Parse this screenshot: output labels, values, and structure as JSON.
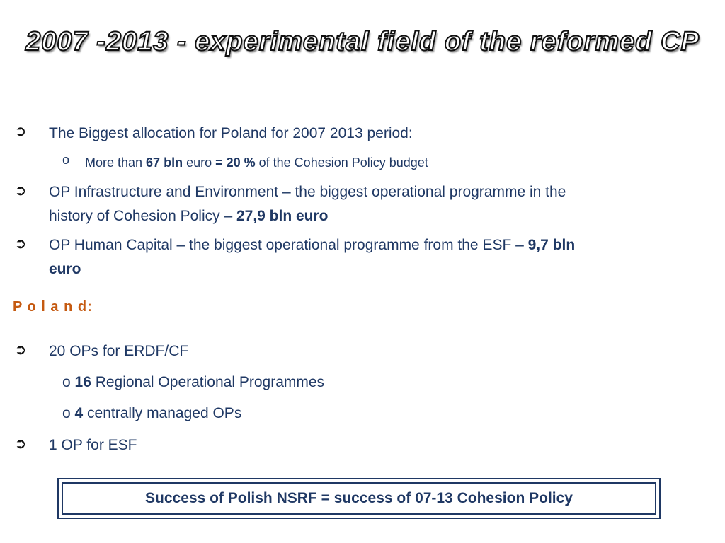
{
  "title": "2007 -2013 - experimental field of the reformed CP",
  "bullet_glyph": "➲",
  "items": {
    "b1": "The Biggest allocation for Poland for 2007 2013 period:",
    "b1_sub": {
      "o": "o",
      "a": "More than ",
      "b": "67 bln",
      "c": " euro ",
      "d": "= 20 %",
      "e": " of the Cohesion Policy budget"
    },
    "b2_line1": "OP Infrastructure and Environment – the biggest operational programme in the",
    "b2_line2a": "history of Cohesion Policy – ",
    "b2_line2b": "27,9 bln euro",
    "b3_line1a": "OP Human Capital – the biggest operational programme from the ESF – ",
    "b3_line1b": "9,7 bln",
    "b3_line2": "euro"
  },
  "poland_heading": "P o l a n d:",
  "poland": {
    "b4": "20 OPs for ERDF/CF",
    "b4_sub1": {
      "o": "o ",
      "num": "16",
      "text": " Regional Operational Programmes"
    },
    "b4_sub2": {
      "o": "o ",
      "num": "4",
      "text": " centrally managed OPs"
    },
    "b5": "1 OP for ESF"
  },
  "footer_box": "Success of Polish NSRF = success of 07-13 Cohesion Policy",
  "colors": {
    "text": "#1f3864",
    "heading_accent": "#c55a11"
  }
}
